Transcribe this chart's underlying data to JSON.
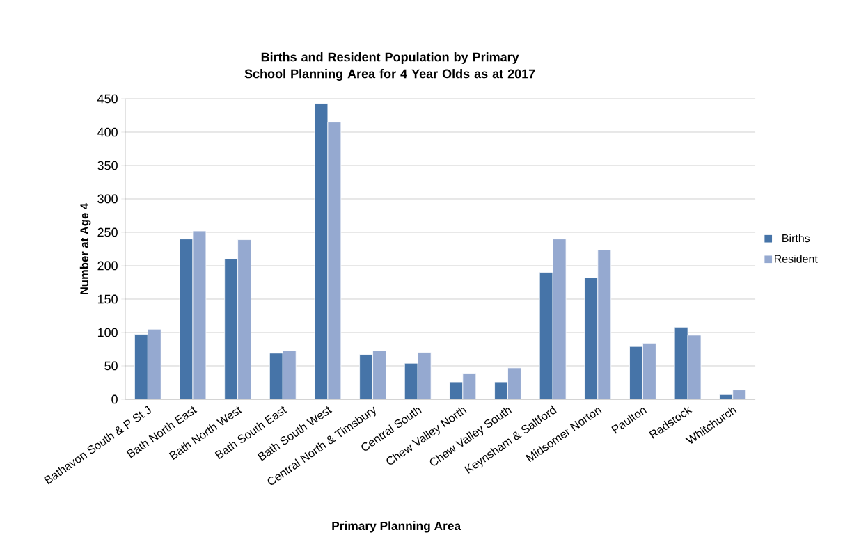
{
  "chart_data": {
    "type": "bar",
    "title": "Births and Resident Population by Primary School Planning Area for 4 Year Olds as at 2017",
    "xlabel": "Primary Planning Area",
    "ylabel": "Number at Age 4",
    "categories": [
      "Bathavon South & P St J",
      "Bath North East",
      "Bath North West",
      "Bath South East",
      "Bath South West",
      "Central North & Timsbury",
      "Central South",
      "Chew Valley North",
      "Chew Valley South",
      "Keynsham & Saltford",
      "Midsomer Norton",
      "Paulton",
      "Radstock",
      "Whitchurch"
    ],
    "series": [
      {
        "name": "Births",
        "color": "#4674a8",
        "values": [
          97,
          240,
          210,
          69,
          443,
          67,
          54,
          26,
          26,
          190,
          182,
          79,
          108,
          7
        ]
      },
      {
        "name": "Resident",
        "color": "#95a9d0",
        "values": [
          105,
          252,
          239,
          73,
          415,
          73,
          70,
          39,
          47,
          240,
          224,
          84,
          96,
          14
        ]
      }
    ],
    "ylim": [
      0,
      450
    ],
    "yticks": [
      0,
      50,
      100,
      150,
      200,
      250,
      300,
      350,
      400,
      450
    ],
    "grid": "y",
    "legend": "right"
  }
}
